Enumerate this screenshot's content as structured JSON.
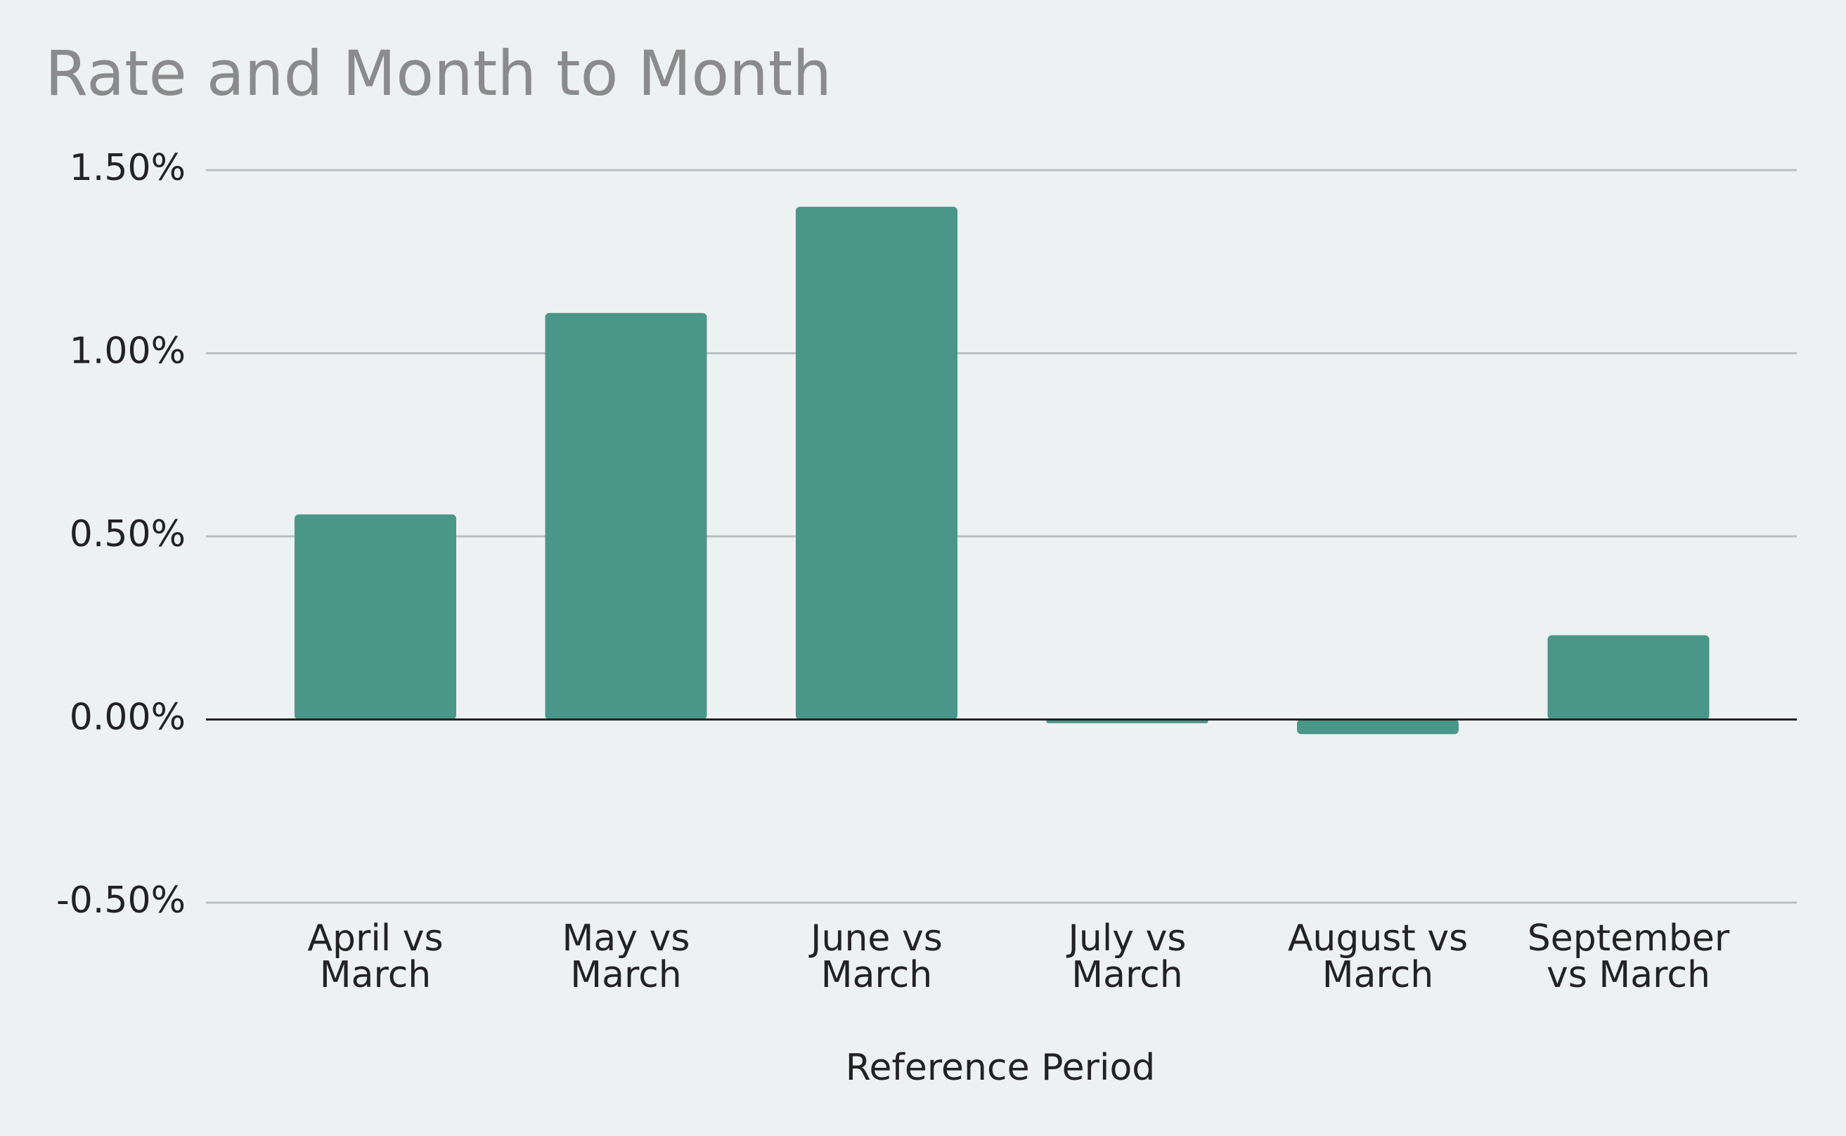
{
  "chart_data": {
    "type": "bar",
    "title": "Rate and Month to Month",
    "xlabel": "Reference Period",
    "ylabel": "",
    "categories": [
      [
        "April vs",
        "March"
      ],
      [
        "May vs",
        "March"
      ],
      [
        "June vs",
        "March"
      ],
      [
        "July vs",
        "March"
      ],
      [
        "August vs",
        "March"
      ],
      [
        "September",
        "vs March"
      ]
    ],
    "values": [
      0.0056,
      0.0111,
      0.014,
      -0.0001,
      -0.0004,
      0.0023
    ],
    "ylim": [
      -0.005,
      0.015
    ],
    "yticks": [
      {
        "value": 0.015,
        "label": "1.50%"
      },
      {
        "value": 0.01,
        "label": "1.00%"
      },
      {
        "value": 0.005,
        "label": "0.50%"
      },
      {
        "value": 0.0,
        "label": "0.00%"
      },
      {
        "value": -0.005,
        "label": "-0.50%"
      }
    ],
    "grid": true,
    "legend": "none",
    "colors": {
      "bar": "#4a9688",
      "grid": "#b9bfc1",
      "zero_line": "#222222",
      "title": "#8b8b8b",
      "background": "#eef1f1"
    }
  }
}
